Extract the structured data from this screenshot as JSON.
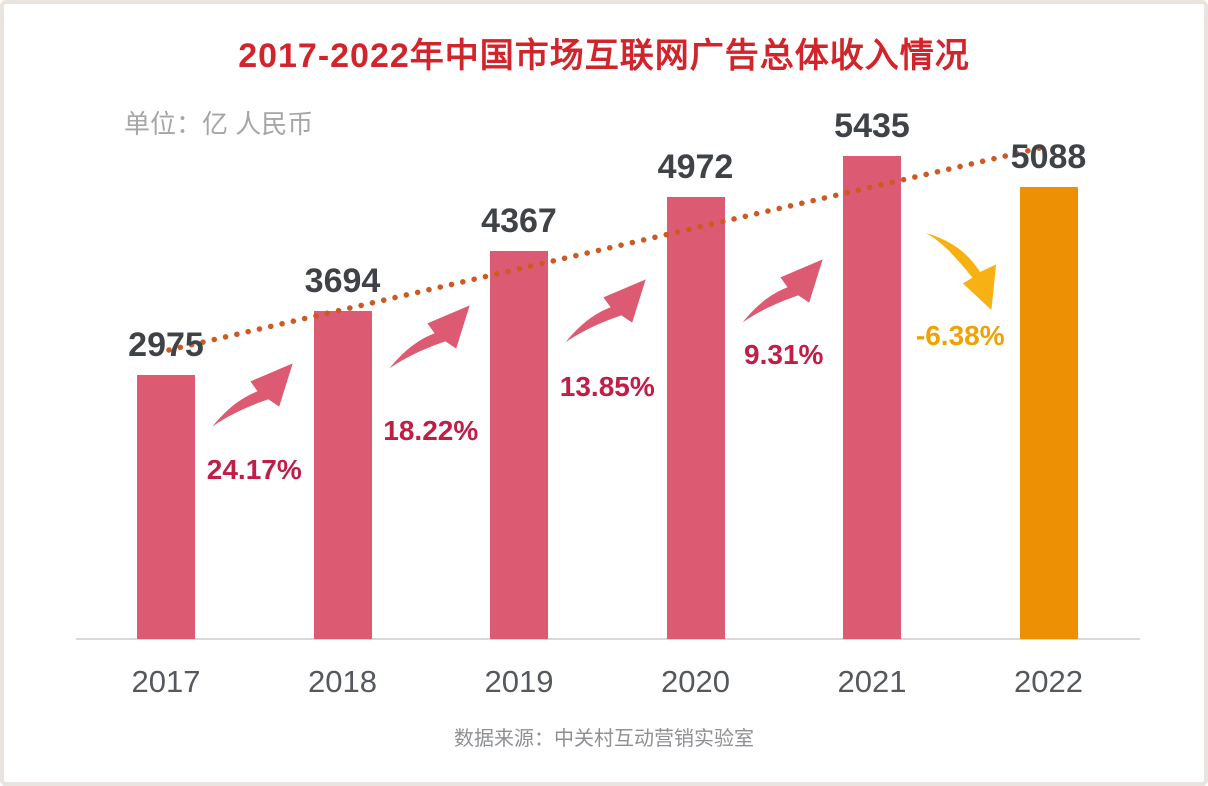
{
  "page": {
    "title": "2017-2022年中国市场互联网广告总体收入情况",
    "unit_label": "单位：亿 人民币",
    "source": "数据来源：中关村互动营销实验室"
  },
  "colors": {
    "title": "#d2242b",
    "bar": "#dc5b73",
    "bar_highlight": "#ee9004",
    "growth_text": "#c11d46",
    "decline_text": "#f0a202",
    "arrow_up": "#dc5b73",
    "arrow_down": "#f8b112",
    "trend_dots": "#cc5a22",
    "value_label": "#3f4347",
    "axis_label": "#55585c",
    "subtitle": "#a6a6a6",
    "source_text": "#8e9094",
    "axis_line": "#d9d9d9"
  },
  "chart_data": {
    "type": "bar",
    "title": "2017-2022年中国市场互联网广告总体收入情况",
    "unit": "亿 人民币",
    "categories": [
      "2017",
      "2018",
      "2019",
      "2020",
      "2021",
      "2022"
    ],
    "values": [
      2975,
      3694,
      4367,
      4972,
      5435,
      5088
    ],
    "growth_rates": [
      "24.17%",
      "18.22%",
      "13.85%",
      "9.31%",
      "-6.38%"
    ],
    "highlight_index": 5,
    "ylim": [
      0,
      5800
    ],
    "grid": false,
    "legend": "none",
    "trendline": "dotted-linear-over-bar-tops",
    "annotations": "curved growth arrows between bars; last arrow points down (decline)",
    "source": "数据来源：中关村互动营销实验室"
  }
}
